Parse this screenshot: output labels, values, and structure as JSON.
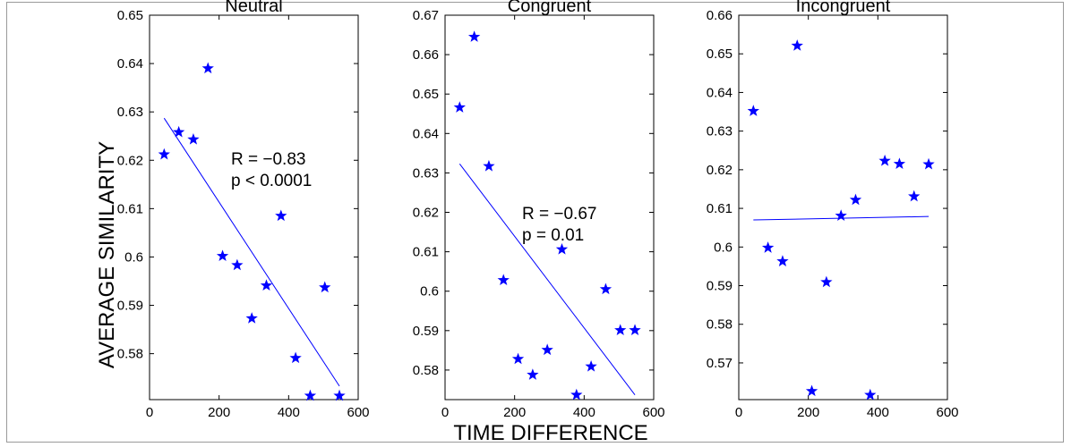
{
  "figure": {
    "ylabel": "AVERAGE SIMILARITY",
    "xlabel": "TIME DIFFERENCE"
  },
  "chart_data": [
    {
      "type": "scatter",
      "title": "Neutral",
      "xlim": [
        0,
        600
      ],
      "ylim": [
        0.5705,
        0.65
      ],
      "xticks": [
        "0",
        "200",
        "400",
        "600"
      ],
      "yticks": [
        "0.58",
        "0.59",
        "0.6",
        "0.61",
        "0.62",
        "0.63",
        "0.64",
        "0.65"
      ],
      "points": [
        {
          "x": 42,
          "y": 0.6212
        },
        {
          "x": 84,
          "y": 0.6258
        },
        {
          "x": 126,
          "y": 0.6243
        },
        {
          "x": 168,
          "y": 0.639
        },
        {
          "x": 210,
          "y": 0.6002
        },
        {
          "x": 252,
          "y": 0.5983
        },
        {
          "x": 294,
          "y": 0.5873
        },
        {
          "x": 336,
          "y": 0.5941
        },
        {
          "x": 378,
          "y": 0.6085
        },
        {
          "x": 420,
          "y": 0.5791
        },
        {
          "x": 462,
          "y": 0.5713
        },
        {
          "x": 504,
          "y": 0.5937
        },
        {
          "x": 546,
          "y": 0.5713
        }
      ],
      "fit": {
        "x": [
          42,
          546
        ],
        "y": [
          0.6287,
          0.5733
        ]
      },
      "annotation": [
        "R = −0.83",
        "p < 0.0001"
      ]
    },
    {
      "type": "scatter",
      "title": "Congruent",
      "xlim": [
        0,
        600
      ],
      "ylim": [
        0.5725,
        0.67
      ],
      "xticks": [
        "0",
        "200",
        "400",
        "600"
      ],
      "yticks": [
        "0.58",
        "0.59",
        "0.6",
        "0.61",
        "0.62",
        "0.63",
        "0.64",
        "0.65",
        "0.66",
        "0.67"
      ],
      "points": [
        {
          "x": 42,
          "y": 0.6466
        },
        {
          "x": 84,
          "y": 0.6645
        },
        {
          "x": 126,
          "y": 0.6317
        },
        {
          "x": 168,
          "y": 0.6028
        },
        {
          "x": 210,
          "y": 0.5828
        },
        {
          "x": 252,
          "y": 0.5788
        },
        {
          "x": 294,
          "y": 0.5851
        },
        {
          "x": 336,
          "y": 0.6106
        },
        {
          "x": 378,
          "y": 0.5737
        },
        {
          "x": 420,
          "y": 0.5809
        },
        {
          "x": 462,
          "y": 0.6005
        },
        {
          "x": 504,
          "y": 0.5901
        },
        {
          "x": 546,
          "y": 0.5901
        }
      ],
      "fit": {
        "x": [
          42,
          546
        ],
        "y": [
          0.6323,
          0.5737
        ]
      },
      "annotation": [
        "R = −0.67",
        "p = 0.01"
      ]
    },
    {
      "type": "scatter",
      "title": "Incongruent",
      "xlim": [
        0,
        600
      ],
      "ylim": [
        0.5605,
        0.66
      ],
      "xticks": [
        "0",
        "200",
        "400",
        "600"
      ],
      "yticks": [
        "0.57",
        "0.58",
        "0.59",
        "0.6",
        "0.61",
        "0.62",
        "0.63",
        "0.64",
        "0.65",
        "0.66"
      ],
      "points": [
        {
          "x": 42,
          "y": 0.6352
        },
        {
          "x": 84,
          "y": 0.5998
        },
        {
          "x": 126,
          "y": 0.5963
        },
        {
          "x": 168,
          "y": 0.6521
        },
        {
          "x": 210,
          "y": 0.5627
        },
        {
          "x": 252,
          "y": 0.5909
        },
        {
          "x": 294,
          "y": 0.6081
        },
        {
          "x": 336,
          "y": 0.6122
        },
        {
          "x": 378,
          "y": 0.5617
        },
        {
          "x": 420,
          "y": 0.6223
        },
        {
          "x": 462,
          "y": 0.6215
        },
        {
          "x": 504,
          "y": 0.6131
        },
        {
          "x": 546,
          "y": 0.6214
        }
      ],
      "fit": {
        "x": [
          42,
          546
        ],
        "y": [
          0.607,
          0.6079
        ]
      },
      "annotation": []
    }
  ],
  "colors": {
    "marker": "#0000ff",
    "fit_line": "#0000ff",
    "axes": "#000000"
  }
}
